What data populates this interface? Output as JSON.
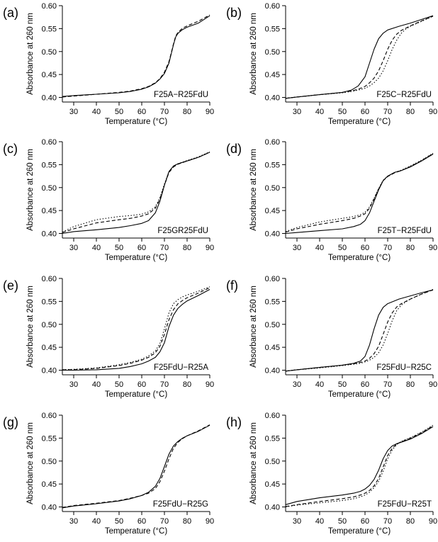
{
  "chart_data": [
    {
      "type": "line",
      "panel": "(a)",
      "annotation": "F25A−R25FdU",
      "xlabel": "Temperature (°C)",
      "ylabel": "Absorbance at 260 nm",
      "xlim": [
        25,
        90
      ],
      "ylim": [
        0.39,
        0.6
      ],
      "xticks": [
        "30",
        "40",
        "50",
        "60",
        "70",
        "80",
        "90"
      ],
      "yticks": [
        "0.40",
        "0.45",
        "0.50",
        "0.55",
        "0.60"
      ],
      "series": [
        {
          "style": "solid",
          "x": [
            25,
            30,
            40,
            50,
            55,
            60,
            63,
            66,
            68,
            70,
            72,
            73,
            74,
            75,
            76,
            78,
            80,
            85,
            90
          ],
          "y": [
            0.402,
            0.404,
            0.407,
            0.41,
            0.413,
            0.418,
            0.423,
            0.431,
            0.44,
            0.452,
            0.475,
            0.495,
            0.515,
            0.532,
            0.54,
            0.548,
            0.553,
            0.562,
            0.578
          ]
        },
        {
          "style": "dashed",
          "x": [
            25,
            30,
            40,
            50,
            55,
            60,
            63,
            66,
            68,
            70,
            72,
            73,
            74,
            75,
            76,
            78,
            80,
            85,
            90
          ],
          "y": [
            0.401,
            0.403,
            0.407,
            0.411,
            0.414,
            0.419,
            0.424,
            0.432,
            0.441,
            0.455,
            0.478,
            0.497,
            0.517,
            0.534,
            0.542,
            0.551,
            0.556,
            0.566,
            0.58
          ]
        }
      ]
    },
    {
      "type": "line",
      "panel": "(b)",
      "annotation": "F25C−R25FdU",
      "xlabel": "Temperature (°C)",
      "ylabel": "Absorbance at 260 nm",
      "xlim": [
        25,
        90
      ],
      "ylim": [
        0.39,
        0.6
      ],
      "xticks": [
        "30",
        "40",
        "50",
        "60",
        "70",
        "80",
        "90"
      ],
      "yticks": [
        "0.40",
        "0.45",
        "0.50",
        "0.55",
        "0.60"
      ],
      "series": [
        {
          "style": "solid",
          "x": [
            25,
            30,
            40,
            50,
            54,
            57,
            60,
            62,
            64,
            66,
            68,
            70,
            75,
            80,
            85,
            90
          ],
          "y": [
            0.398,
            0.401,
            0.406,
            0.411,
            0.416,
            0.425,
            0.445,
            0.475,
            0.505,
            0.528,
            0.54,
            0.547,
            0.555,
            0.562,
            0.57,
            0.578
          ]
        },
        {
          "style": "dashed",
          "x": [
            25,
            30,
            40,
            50,
            54,
            57,
            60,
            62,
            64,
            66,
            68,
            70,
            72,
            74,
            76,
            80,
            85,
            90
          ],
          "y": [
            0.398,
            0.401,
            0.406,
            0.411,
            0.414,
            0.418,
            0.424,
            0.432,
            0.442,
            0.458,
            0.48,
            0.505,
            0.525,
            0.538,
            0.546,
            0.556,
            0.567,
            0.577
          ]
        },
        {
          "style": "dotted",
          "x": [
            25,
            30,
            40,
            50,
            54,
            57,
            60,
            62,
            64,
            66,
            68,
            70,
            72,
            74,
            76,
            78,
            80,
            85,
            90
          ],
          "y": [
            0.398,
            0.401,
            0.406,
            0.41,
            0.413,
            0.416,
            0.42,
            0.425,
            0.432,
            0.442,
            0.458,
            0.48,
            0.505,
            0.525,
            0.54,
            0.549,
            0.555,
            0.566,
            0.577
          ]
        }
      ]
    },
    {
      "type": "line",
      "panel": "(c)",
      "annotation": "F25GR25FdU",
      "xlabel": "Temperature (°C)",
      "ylabel": "Absorbance at 260 nm",
      "xlim": [
        25,
        90
      ],
      "ylim": [
        0.39,
        0.6
      ],
      "xticks": [
        "30",
        "40",
        "50",
        "60",
        "70",
        "80",
        "90"
      ],
      "yticks": [
        "0.40",
        "0.45",
        "0.50",
        "0.55",
        "0.60"
      ],
      "series": [
        {
          "style": "solid",
          "x": [
            25,
            30,
            40,
            50,
            55,
            60,
            63,
            66,
            68,
            70,
            72,
            74,
            76,
            80,
            85,
            90
          ],
          "y": [
            0.4,
            0.404,
            0.408,
            0.413,
            0.417,
            0.422,
            0.428,
            0.445,
            0.47,
            0.505,
            0.535,
            0.547,
            0.552,
            0.558,
            0.566,
            0.577
          ]
        },
        {
          "style": "dashed",
          "x": [
            25,
            30,
            40,
            50,
            55,
            60,
            63,
            66,
            68,
            70,
            72,
            74,
            76,
            80,
            85,
            90
          ],
          "y": [
            0.402,
            0.41,
            0.423,
            0.43,
            0.433,
            0.438,
            0.443,
            0.455,
            0.475,
            0.505,
            0.533,
            0.545,
            0.551,
            0.558,
            0.566,
            0.577
          ]
        },
        {
          "style": "dotted",
          "x": [
            25,
            30,
            40,
            50,
            55,
            60,
            63,
            66,
            68,
            70,
            72,
            74,
            76,
            80,
            85,
            90
          ],
          "y": [
            0.403,
            0.415,
            0.43,
            0.437,
            0.439,
            0.442,
            0.447,
            0.458,
            0.478,
            0.508,
            0.535,
            0.547,
            0.552,
            0.559,
            0.567,
            0.578
          ]
        }
      ]
    },
    {
      "type": "line",
      "panel": "(d)",
      "annotation": "F25T−R25FdU",
      "xlabel": "Temperature (°C)",
      "ylabel": "Absorbance at 260 nm",
      "xlim": [
        25,
        90
      ],
      "ylim": [
        0.39,
        0.6
      ],
      "xticks": [
        "30",
        "40",
        "50",
        "60",
        "70",
        "80",
        "90"
      ],
      "yticks": [
        "0.40",
        "0.45",
        "0.50",
        "0.55",
        "0.60"
      ],
      "series": [
        {
          "style": "solid",
          "x": [
            25,
            30,
            40,
            50,
            55,
            58,
            60,
            62,
            64,
            66,
            68,
            70,
            73,
            76,
            80,
            85,
            90
          ],
          "y": [
            0.4,
            0.402,
            0.406,
            0.41,
            0.415,
            0.42,
            0.428,
            0.445,
            0.47,
            0.495,
            0.515,
            0.525,
            0.533,
            0.537,
            0.545,
            0.558,
            0.573
          ]
        },
        {
          "style": "dashed",
          "x": [
            25,
            30,
            40,
            50,
            55,
            58,
            60,
            62,
            64,
            66,
            68,
            70,
            73,
            76,
            80,
            85,
            90
          ],
          "y": [
            0.403,
            0.41,
            0.42,
            0.428,
            0.433,
            0.438,
            0.443,
            0.455,
            0.475,
            0.497,
            0.515,
            0.524,
            0.532,
            0.537,
            0.546,
            0.559,
            0.574
          ]
        },
        {
          "style": "dotted",
          "x": [
            25,
            30,
            40,
            50,
            55,
            58,
            60,
            62,
            64,
            66,
            68,
            70,
            73,
            76,
            80,
            85,
            90
          ],
          "y": [
            0.404,
            0.413,
            0.425,
            0.433,
            0.437,
            0.441,
            0.446,
            0.458,
            0.477,
            0.498,
            0.516,
            0.525,
            0.533,
            0.538,
            0.547,
            0.56,
            0.575
          ]
        }
      ]
    },
    {
      "type": "line",
      "panel": "(e)",
      "annotation": "F25FdU−R25A",
      "xlabel": "Temperature (°C)",
      "ylabel": "Absorbance at 260 nm",
      "xlim": [
        25,
        90
      ],
      "ylim": [
        0.39,
        0.6
      ],
      "xticks": [
        "30",
        "40",
        "50",
        "60",
        "70",
        "80",
        "90"
      ],
      "yticks": [
        "0.40",
        "0.45",
        "0.50",
        "0.55",
        "0.60"
      ],
      "series": [
        {
          "style": "solid",
          "x": [
            25,
            30,
            40,
            50,
            55,
            60,
            63,
            66,
            68,
            70,
            72,
            74,
            76,
            78,
            80,
            85,
            90
          ],
          "y": [
            0.4,
            0.4,
            0.401,
            0.404,
            0.408,
            0.414,
            0.42,
            0.428,
            0.44,
            0.46,
            0.495,
            0.52,
            0.535,
            0.544,
            0.551,
            0.563,
            0.576
          ]
        },
        {
          "style": "dashed",
          "x": [
            25,
            30,
            40,
            50,
            55,
            60,
            63,
            66,
            68,
            70,
            72,
            74,
            76,
            78,
            80,
            85,
            90
          ],
          "y": [
            0.401,
            0.401,
            0.404,
            0.41,
            0.415,
            0.422,
            0.428,
            0.438,
            0.452,
            0.478,
            0.51,
            0.532,
            0.545,
            0.552,
            0.558,
            0.568,
            0.58
          ]
        },
        {
          "style": "dotted",
          "x": [
            25,
            30,
            40,
            50,
            55,
            60,
            63,
            66,
            68,
            70,
            72,
            74,
            76,
            78,
            80,
            85,
            90
          ],
          "y": [
            0.401,
            0.402,
            0.405,
            0.412,
            0.417,
            0.424,
            0.431,
            0.442,
            0.458,
            0.49,
            0.525,
            0.545,
            0.554,
            0.56,
            0.564,
            0.572,
            0.582
          ]
        }
      ]
    },
    {
      "type": "line",
      "panel": "(f)",
      "annotation": "F25FdU−R25C",
      "xlabel": "Temperature (°C)",
      "ylabel": "Absorbance at 260 nm",
      "xlim": [
        25,
        90
      ],
      "ylim": [
        0.39,
        0.6
      ],
      "xticks": [
        "30",
        "40",
        "50",
        "60",
        "70",
        "80",
        "90"
      ],
      "yticks": [
        "0.40",
        "0.45",
        "0.50",
        "0.55",
        "0.60"
      ],
      "series": [
        {
          "style": "solid",
          "x": [
            25,
            30,
            40,
            50,
            55,
            58,
            60,
            62,
            64,
            66,
            68,
            70,
            75,
            80,
            85,
            90
          ],
          "y": [
            0.398,
            0.401,
            0.406,
            0.411,
            0.415,
            0.42,
            0.43,
            0.455,
            0.49,
            0.52,
            0.537,
            0.545,
            0.555,
            0.562,
            0.569,
            0.575
          ]
        },
        {
          "style": "dashed",
          "x": [
            25,
            30,
            40,
            50,
            55,
            58,
            60,
            62,
            64,
            66,
            68,
            70,
            72,
            74,
            76,
            80,
            85,
            90
          ],
          "y": [
            0.398,
            0.401,
            0.406,
            0.411,
            0.414,
            0.417,
            0.42,
            0.426,
            0.436,
            0.452,
            0.478,
            0.505,
            0.525,
            0.538,
            0.545,
            0.555,
            0.566,
            0.575
          ]
        },
        {
          "style": "dotted",
          "x": [
            25,
            30,
            40,
            50,
            55,
            58,
            60,
            62,
            64,
            66,
            68,
            70,
            72,
            74,
            76,
            78,
            80,
            85,
            90
          ],
          "y": [
            0.398,
            0.401,
            0.405,
            0.41,
            0.413,
            0.415,
            0.418,
            0.422,
            0.428,
            0.438,
            0.455,
            0.48,
            0.508,
            0.53,
            0.542,
            0.549,
            0.555,
            0.566,
            0.576
          ]
        }
      ]
    },
    {
      "type": "line",
      "panel": "(g)",
      "annotation": "F25FdU−R25G",
      "xlabel": "Temperature (°C)",
      "ylabel": "Absorbance at 260 nm",
      "xlim": [
        25,
        90
      ],
      "ylim": [
        0.39,
        0.6
      ],
      "xticks": [
        "30",
        "40",
        "50",
        "60",
        "70",
        "80",
        "90"
      ],
      "yticks": [
        "0.40",
        "0.45",
        "0.50",
        "0.55",
        "0.60"
      ],
      "series": [
        {
          "style": "solid",
          "x": [
            25,
            30,
            40,
            50,
            55,
            60,
            63,
            66,
            68,
            70,
            72,
            74,
            76,
            78,
            80,
            85,
            90
          ],
          "y": [
            0.398,
            0.402,
            0.407,
            0.413,
            0.418,
            0.425,
            0.432,
            0.445,
            0.462,
            0.488,
            0.515,
            0.533,
            0.543,
            0.55,
            0.555,
            0.565,
            0.578
          ]
        },
        {
          "style": "dashed",
          "x": [
            25,
            30,
            40,
            50,
            55,
            60,
            63,
            66,
            68,
            70,
            72,
            74,
            76,
            78,
            80,
            85,
            90
          ],
          "y": [
            0.399,
            0.403,
            0.408,
            0.414,
            0.419,
            0.425,
            0.43,
            0.44,
            0.455,
            0.478,
            0.505,
            0.528,
            0.541,
            0.549,
            0.555,
            0.566,
            0.579
          ]
        }
      ]
    },
    {
      "type": "line",
      "panel": "(h)",
      "annotation": "F25FdU−R25T",
      "xlabel": "Temperature (°C)",
      "ylabel": "Absorbance at 260 nm",
      "xlim": [
        25,
        90
      ],
      "ylim": [
        0.39,
        0.6
      ],
      "xticks": [
        "30",
        "40",
        "50",
        "60",
        "70",
        "80",
        "90"
      ],
      "yticks": [
        "0.40",
        "0.45",
        "0.50",
        "0.55",
        "0.60"
      ],
      "series": [
        {
          "style": "solid",
          "x": [
            25,
            30,
            40,
            50,
            55,
            58,
            60,
            62,
            64,
            66,
            68,
            70,
            72,
            74,
            76,
            80,
            85,
            90
          ],
          "y": [
            0.405,
            0.412,
            0.42,
            0.426,
            0.43,
            0.434,
            0.439,
            0.447,
            0.46,
            0.48,
            0.505,
            0.523,
            0.533,
            0.538,
            0.541,
            0.548,
            0.56,
            0.575
          ]
        },
        {
          "style": "dashed",
          "x": [
            25,
            30,
            40,
            50,
            55,
            58,
            60,
            62,
            64,
            66,
            68,
            70,
            72,
            74,
            76,
            80,
            85,
            90
          ],
          "y": [
            0.401,
            0.405,
            0.412,
            0.418,
            0.422,
            0.426,
            0.43,
            0.436,
            0.446,
            0.462,
            0.487,
            0.512,
            0.528,
            0.537,
            0.542,
            0.55,
            0.562,
            0.577
          ]
        },
        {
          "style": "dotted",
          "x": [
            25,
            30,
            40,
            50,
            55,
            58,
            60,
            62,
            64,
            66,
            68,
            70,
            72,
            74,
            76,
            80,
            85,
            90
          ],
          "y": [
            0.4,
            0.404,
            0.409,
            0.414,
            0.418,
            0.422,
            0.426,
            0.432,
            0.442,
            0.456,
            0.478,
            0.505,
            0.524,
            0.536,
            0.543,
            0.551,
            0.563,
            0.578
          ]
        }
      ]
    }
  ]
}
